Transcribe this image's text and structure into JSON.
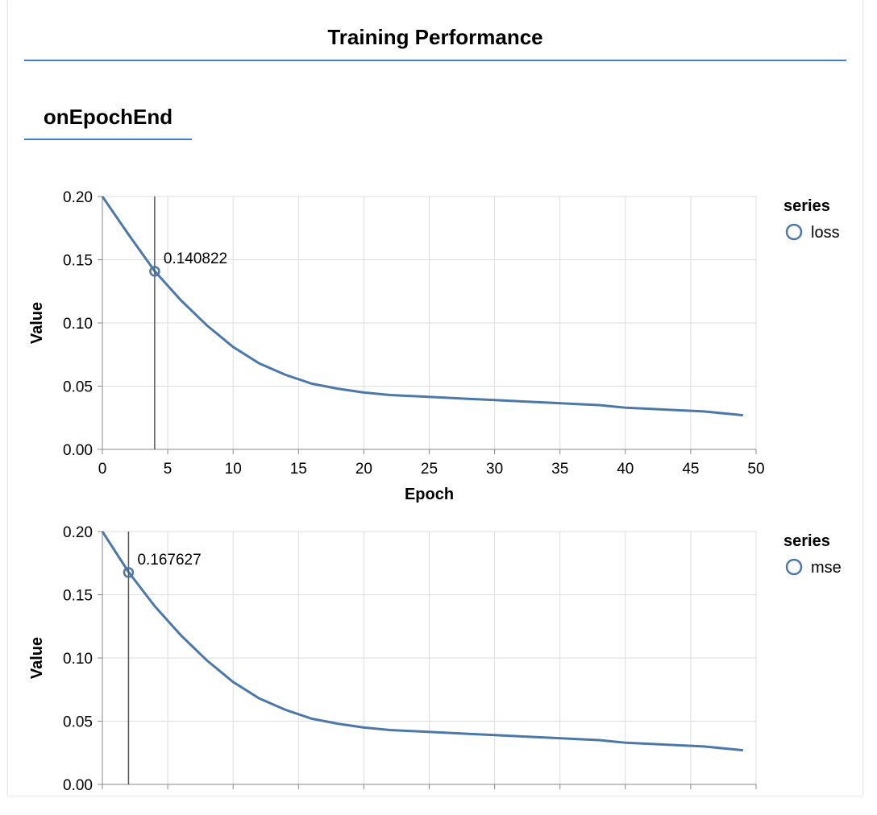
{
  "page": {
    "title": "Training Performance"
  },
  "tabs": [
    {
      "label": "onEpochEnd"
    }
  ],
  "colors": {
    "accent": "#3f7fcf",
    "series": "#4c78a8",
    "grid": "#dddddd",
    "axis": "#888888"
  },
  "chart_data": [
    {
      "type": "line",
      "xlabel": "Epoch",
      "ylabel": "Value",
      "xlim": [
        0,
        50
      ],
      "ylim": [
        0,
        0.2
      ],
      "xticks": [
        "0",
        "5",
        "10",
        "15",
        "20",
        "25",
        "30",
        "35",
        "40",
        "45",
        "50"
      ],
      "yticks": [
        "0.00",
        "0.05",
        "0.10",
        "0.15",
        "0.20"
      ],
      "grid": true,
      "legend": {
        "title": "series",
        "position": "right",
        "entries": [
          "loss"
        ]
      },
      "series": [
        {
          "name": "loss",
          "x": [
            0,
            2,
            4,
            6,
            8,
            10,
            12,
            14,
            16,
            18,
            20,
            22,
            24,
            26,
            28,
            30,
            32,
            34,
            36,
            38,
            40,
            42,
            44,
            46,
            48,
            49
          ],
          "y": [
            0.2,
            0.17,
            0.141,
            0.118,
            0.098,
            0.081,
            0.068,
            0.059,
            0.052,
            0.048,
            0.045,
            0.043,
            0.042,
            0.041,
            0.04,
            0.039,
            0.038,
            0.037,
            0.036,
            0.035,
            0.033,
            0.032,
            0.031,
            0.03,
            0.028,
            0.027
          ]
        }
      ],
      "highlight": {
        "x": 4,
        "y": 0.140822,
        "label": "0.140822"
      }
    },
    {
      "type": "line",
      "xlabel": "",
      "ylabel": "Value",
      "xlim": [
        0,
        50
      ],
      "ylim": [
        0,
        0.2
      ],
      "xticks": [],
      "yticks": [
        "0.00",
        "0.05",
        "0.10",
        "0.15",
        "0.20"
      ],
      "grid": true,
      "legend": {
        "title": "series",
        "position": "right",
        "entries": [
          "mse"
        ]
      },
      "series": [
        {
          "name": "mse",
          "x": [
            0,
            2,
            4,
            6,
            8,
            10,
            12,
            14,
            16,
            18,
            20,
            22,
            24,
            26,
            28,
            30,
            32,
            34,
            36,
            38,
            40,
            42,
            44,
            46,
            48,
            49
          ],
          "y": [
            0.2,
            0.168,
            0.141,
            0.118,
            0.098,
            0.081,
            0.068,
            0.059,
            0.052,
            0.048,
            0.045,
            0.043,
            0.042,
            0.041,
            0.04,
            0.039,
            0.038,
            0.037,
            0.036,
            0.035,
            0.033,
            0.032,
            0.031,
            0.03,
            0.028,
            0.027
          ]
        }
      ],
      "highlight": {
        "x": 2,
        "y": 0.167627,
        "label": "0.167627"
      }
    }
  ]
}
